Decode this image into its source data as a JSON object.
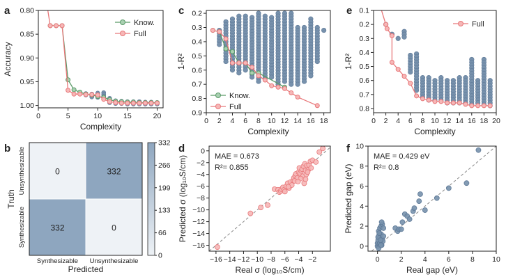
{
  "colors": {
    "green": "#5a9a68",
    "red": "#e8787a",
    "red_fill": "#f6b7b7",
    "blue": "#7791ac",
    "blue_edge": "#5f7a98",
    "grid": "#999999",
    "cm_hi": "#8ea6bf",
    "cm_lo": "#eef2f6"
  },
  "panel_labels": {
    "a": "a",
    "b": "b",
    "c": "c",
    "d": "d",
    "e": "e",
    "f": "f"
  },
  "chart_data": [
    {
      "id": "a",
      "type": "line",
      "xlabel": "Complexity",
      "ylabel": "Accuracy",
      "xlim": [
        0,
        21
      ],
      "ylim": [
        1.005,
        0.8
      ],
      "xticks": [
        "0",
        "5",
        "10",
        "15",
        "20"
      ],
      "yticks": [
        "0.80",
        "0.85",
        "0.90",
        "0.95",
        "1.00"
      ],
      "legend": "top-right",
      "grid": false,
      "series": [
        {
          "name": "Know.",
          "x": [
            2,
            3,
            4,
            5,
            6,
            7,
            8,
            9,
            10,
            11,
            12,
            13,
            14,
            15,
            16,
            17,
            18,
            19,
            20
          ],
          "y": [
            0.832,
            0.832,
            0.832,
            0.946,
            0.967,
            0.972,
            0.976,
            0.978,
            0.981,
            0.983,
            0.988,
            0.991,
            0.992,
            0.993,
            0.993,
            0.994,
            0.994,
            0.994,
            0.994
          ]
        },
        {
          "name": "Full",
          "x": [
            1.6,
            2,
            3,
            4,
            5,
            6,
            7,
            8,
            9,
            10,
            11,
            12,
            13,
            14,
            15,
            16,
            17,
            18,
            19,
            20
          ],
          "y": [
            0.79,
            0.832,
            0.832,
            0.832,
            0.968,
            0.976,
            0.976,
            0.977,
            0.977,
            0.978,
            0.987,
            0.992,
            0.994,
            0.995,
            0.995,
            0.995,
            0.995,
            0.995,
            0.995,
            0.995
          ]
        }
      ],
      "scatter_x": [
        8,
        8,
        9,
        9,
        9,
        10,
        10,
        10,
        11,
        11,
        11,
        11,
        12,
        12,
        12,
        13,
        13,
        14,
        14,
        15,
        15,
        16,
        16,
        17,
        17,
        18,
        18,
        19,
        19,
        20,
        20
      ],
      "scatter_y": [
        0.975,
        0.978,
        0.976,
        0.979,
        0.982,
        0.974,
        0.978,
        0.983,
        0.973,
        0.977,
        0.981,
        0.986,
        0.985,
        0.99,
        0.994,
        0.99,
        0.996,
        0.991,
        0.996,
        0.992,
        0.997,
        0.992,
        0.997,
        0.992,
        0.997,
        0.993,
        0.997,
        0.993,
        0.997,
        0.994,
        0.997
      ]
    },
    {
      "id": "b",
      "type": "heatmap",
      "xlabel": "Predicted",
      "ylabel": "Truth",
      "col_labels": [
        "Synthesizable",
        "Unsynthesizable"
      ],
      "row_labels": [
        "Unsynthesizable",
        "Synthesizable"
      ],
      "values": [
        [
          0,
          332
        ],
        [
          332,
          0
        ]
      ],
      "colorbar_ticks": [
        "332",
        "266",
        "199",
        "133",
        "66",
        "0"
      ],
      "vmax": 332
    },
    {
      "id": "c",
      "type": "line",
      "xlabel": "Complexity",
      "ylabel": "1-R²",
      "xlim": [
        0,
        19
      ],
      "ylim": [
        0.18,
        0.9
      ],
      "xticks": [
        "0",
        "2",
        "4",
        "6",
        "8",
        "10",
        "12",
        "14",
        "16",
        "18"
      ],
      "yticks": [
        "0.2",
        "0.3",
        "0.4",
        "0.5",
        "0.6",
        "0.7",
        "0.8",
        "0.9"
      ],
      "legend": "bottom-left",
      "grid": false,
      "series": [
        {
          "name": "Know.",
          "x": [
            1,
            2,
            3,
            4,
            5,
            6,
            7,
            8,
            12
          ],
          "y": [
            0.32,
            0.33,
            0.45,
            0.47,
            0.55,
            0.55,
            0.62,
            0.62,
            0.72
          ]
        },
        {
          "name": "Full",
          "x": [
            1,
            2,
            3,
            4,
            5,
            6,
            7,
            8,
            9,
            10,
            11,
            12,
            13,
            14,
            17
          ],
          "y": [
            0.32,
            0.33,
            0.38,
            0.55,
            0.55,
            0.55,
            0.58,
            0.64,
            0.67,
            0.71,
            0.72,
            0.73,
            0.76,
            0.79,
            0.85
          ]
        }
      ],
      "columns": [
        {
          "x": 2,
          "ymin": 0.32,
          "ymax": 0.42
        },
        {
          "x": 3,
          "ymin": 0.26,
          "ymax": 0.55
        },
        {
          "x": 4,
          "ymin": 0.24,
          "ymax": 0.6
        },
        {
          "x": 5,
          "ymin": 0.22,
          "ymax": 0.62
        },
        {
          "x": 6,
          "ymin": 0.22,
          "ymax": 0.6
        },
        {
          "x": 7,
          "ymin": 0.23,
          "ymax": 0.65
        },
        {
          "x": 8,
          "ymin": 0.2,
          "ymax": 0.68
        },
        {
          "x": 9,
          "ymin": 0.22,
          "ymax": 0.66
        },
        {
          "x": 10,
          "ymin": 0.23,
          "ymax": 0.66
        },
        {
          "x": 11,
          "ymin": 0.2,
          "ymax": 0.7
        },
        {
          "x": 12,
          "ymin": 0.2,
          "ymax": 0.68
        },
        {
          "x": 13,
          "ymin": 0.2,
          "ymax": 0.7
        },
        {
          "x": 14,
          "ymin": 0.3,
          "ymax": 0.7
        },
        {
          "x": 15,
          "ymin": 0.3,
          "ymax": 0.68
        },
        {
          "x": 16,
          "ymin": 0.24,
          "ymax": 0.64
        },
        {
          "x": 17,
          "ymin": 0.3,
          "ymax": 0.55
        },
        {
          "x": 18,
          "ymin": 0.32,
          "ymax": 0.32
        }
      ]
    },
    {
      "id": "d",
      "type": "scatter",
      "xlabel": "Real σ (log₁₀S/cm)",
      "ylabel": "Predicted σ (log₁₀S/cm)",
      "xlim": [
        -17,
        0.6
      ],
      "ylim": [
        -17,
        0.8
      ],
      "xticks": [
        "−16",
        "−14",
        "−12",
        "−10",
        "−8",
        "−6",
        "−4",
        "−2"
      ],
      "xtick_vals": [
        -16,
        -14,
        -12,
        -10,
        -8,
        -6,
        -4,
        -2
      ],
      "yticks": [
        "0",
        "−2",
        "−4",
        "−6",
        "−8",
        "−10",
        "−12",
        "−14",
        "−16"
      ],
      "ytick_vals": [
        0,
        -2,
        -4,
        -6,
        -8,
        -10,
        -12,
        -14,
        -16
      ],
      "annotations": [
        "MAE = 0.673",
        "R²= 0.855"
      ],
      "x": [
        -15.8,
        -11,
        -9.5,
        -8.5,
        -7.5,
        -7,
        -6.8,
        -6.6,
        -6.5,
        -6.3,
        -6.1,
        -6,
        -5.8,
        -5.6,
        -5.4,
        -5.2,
        -5,
        -4.8,
        -4.7,
        -4.5,
        -4.4,
        -4.2,
        -4,
        -3.9,
        -3.8,
        -3.6,
        -3.5,
        -3.4,
        -3.3,
        -3.1,
        -3,
        -2.9,
        -2.8,
        -2.6,
        -2.5,
        -2.3,
        -2.2,
        -2,
        -1.5,
        -1,
        -0.5,
        -4.6,
        -3.7,
        -3.2,
        -2.7,
        -5.5,
        -4.1,
        -3
      ],
      "y": [
        -16.3,
        -10.6,
        -9.6,
        -9.2,
        -6.5,
        -6.6,
        -7,
        -6.8,
        -6.5,
        -6.2,
        -6.6,
        -6.9,
        -6,
        -5.5,
        -6.3,
        -5.3,
        -5.8,
        -5,
        -4.6,
        -4.2,
        -3.9,
        -4.6,
        -3.6,
        -2.9,
        -3.8,
        -3.4,
        -3.1,
        -4.3,
        -2.6,
        -2.2,
        -3.3,
        -4,
        -2.5,
        -3.2,
        -2.4,
        -1.8,
        -2.9,
        -1.6,
        -1.9,
        -0.2,
        0.4,
        -5.1,
        -4.7,
        -5.5,
        -3.6,
        -6.1,
        -5.2,
        -4.8
      ]
    },
    {
      "id": "e",
      "type": "line",
      "xlabel": "Complexity",
      "ylabel": "1-R²",
      "xlim": [
        0,
        20
      ],
      "ylim": [
        0.1,
        0.83
      ],
      "xticks": [
        "0",
        "2",
        "4",
        "6",
        "8",
        "10",
        "12",
        "14",
        "16",
        "18",
        "20"
      ],
      "yticks": [
        "0.1",
        "0.2",
        "0.3",
        "0.4",
        "0.5",
        "0.6",
        "0.7",
        "0.8"
      ],
      "legend": "top-right",
      "grid": false,
      "series": [
        {
          "name": "Full",
          "x": [
            1.3,
            2,
            2.2,
            3,
            3,
            4,
            5,
            6,
            7,
            8,
            9,
            10,
            11,
            12,
            13,
            14,
            15,
            16,
            17,
            18,
            19
          ],
          "y": [
            0.1,
            0.2,
            0.23,
            0.28,
            0.47,
            0.52,
            0.57,
            0.62,
            0.71,
            0.73,
            0.74,
            0.75,
            0.75,
            0.76,
            0.76,
            0.76,
            0.77,
            0.78,
            0.78,
            0.78,
            0.78
          ]
        }
      ],
      "columns": [
        {
          "x": 2,
          "ymin": 0.2,
          "ymax": 0.2
        },
        {
          "x": 3,
          "ymin": 0.27,
          "ymax": 0.28
        },
        {
          "x": 4,
          "ymin": 0.3,
          "ymax": 0.3
        },
        {
          "x": 5,
          "ymin": 0.25,
          "ymax": 0.3
        },
        {
          "x": 6,
          "ymin": 0.42,
          "ymax": 0.55
        },
        {
          "x": 7,
          "ymin": 0.41,
          "ymax": 0.68
        },
        {
          "x": 8,
          "ymin": 0.58,
          "ymax": 0.73
        },
        {
          "x": 9,
          "ymin": 0.58,
          "ymax": 0.74
        },
        {
          "x": 10,
          "ymin": 0.6,
          "ymax": 0.75
        },
        {
          "x": 11,
          "ymin": 0.58,
          "ymax": 0.75
        },
        {
          "x": 12,
          "ymin": 0.6,
          "ymax": 0.76
        },
        {
          "x": 13,
          "ymin": 0.6,
          "ymax": 0.76
        },
        {
          "x": 14,
          "ymin": 0.58,
          "ymax": 0.76
        },
        {
          "x": 15,
          "ymin": 0.58,
          "ymax": 0.77
        },
        {
          "x": 16,
          "ymin": 0.45,
          "ymax": 0.78
        },
        {
          "x": 17,
          "ymin": 0.6,
          "ymax": 0.77
        },
        {
          "x": 18,
          "ymin": 0.45,
          "ymax": 0.78
        },
        {
          "x": 19,
          "ymin": 0.6,
          "ymax": 0.78
        }
      ]
    },
    {
      "id": "f",
      "type": "scatter",
      "xlabel": "Real gap (eV)",
      "ylabel": "Predicted gap (eV)",
      "xlim": [
        -0.8,
        10
      ],
      "ylim": [
        -0.5,
        10
      ],
      "xticks": [
        "0",
        "2",
        "4",
        "6",
        "8",
        "10"
      ],
      "xtick_vals": [
        0,
        2,
        4,
        6,
        8,
        10
      ],
      "yticks": [
        "0",
        "2",
        "4",
        "6",
        "8",
        "10"
      ],
      "ytick_vals": [
        0,
        2,
        4,
        6,
        8,
        10
      ],
      "annotations": [
        "MAE = 0.429 eV",
        "R²= 0.8"
      ],
      "x": [
        0,
        0,
        0.05,
        0.1,
        0.1,
        0.15,
        0.2,
        0.2,
        0.25,
        0.3,
        0.3,
        0.35,
        0.4,
        0.4,
        0.45,
        0.5,
        0.5,
        0.1,
        0.2,
        0.3,
        1.5,
        1.7,
        1.8,
        2.0,
        2.1,
        2.3,
        2.5,
        2.7,
        3.0,
        3.1,
        3.5,
        3.6,
        4.0,
        5.0,
        6.0,
        7.5,
        8.5,
        0.05,
        0.15,
        0.25,
        0.35
      ],
      "y": [
        0,
        0.3,
        0.6,
        1.0,
        1.5,
        0.2,
        0.8,
        1.8,
        0.4,
        1.2,
        2.0,
        0.1,
        0.7,
        2.2,
        0.5,
        1.8,
        1.0,
        -0.2,
        0.3,
        0.1,
        1.8,
        1.5,
        1.7,
        1.7,
        2.4,
        3.2,
        3.0,
        2.7,
        3.5,
        3.8,
        4.5,
        5.2,
        3.6,
        4.8,
        5.8,
        6.3,
        9.6,
        0.9,
        1.3,
        0.6,
        2.4
      ]
    }
  ]
}
